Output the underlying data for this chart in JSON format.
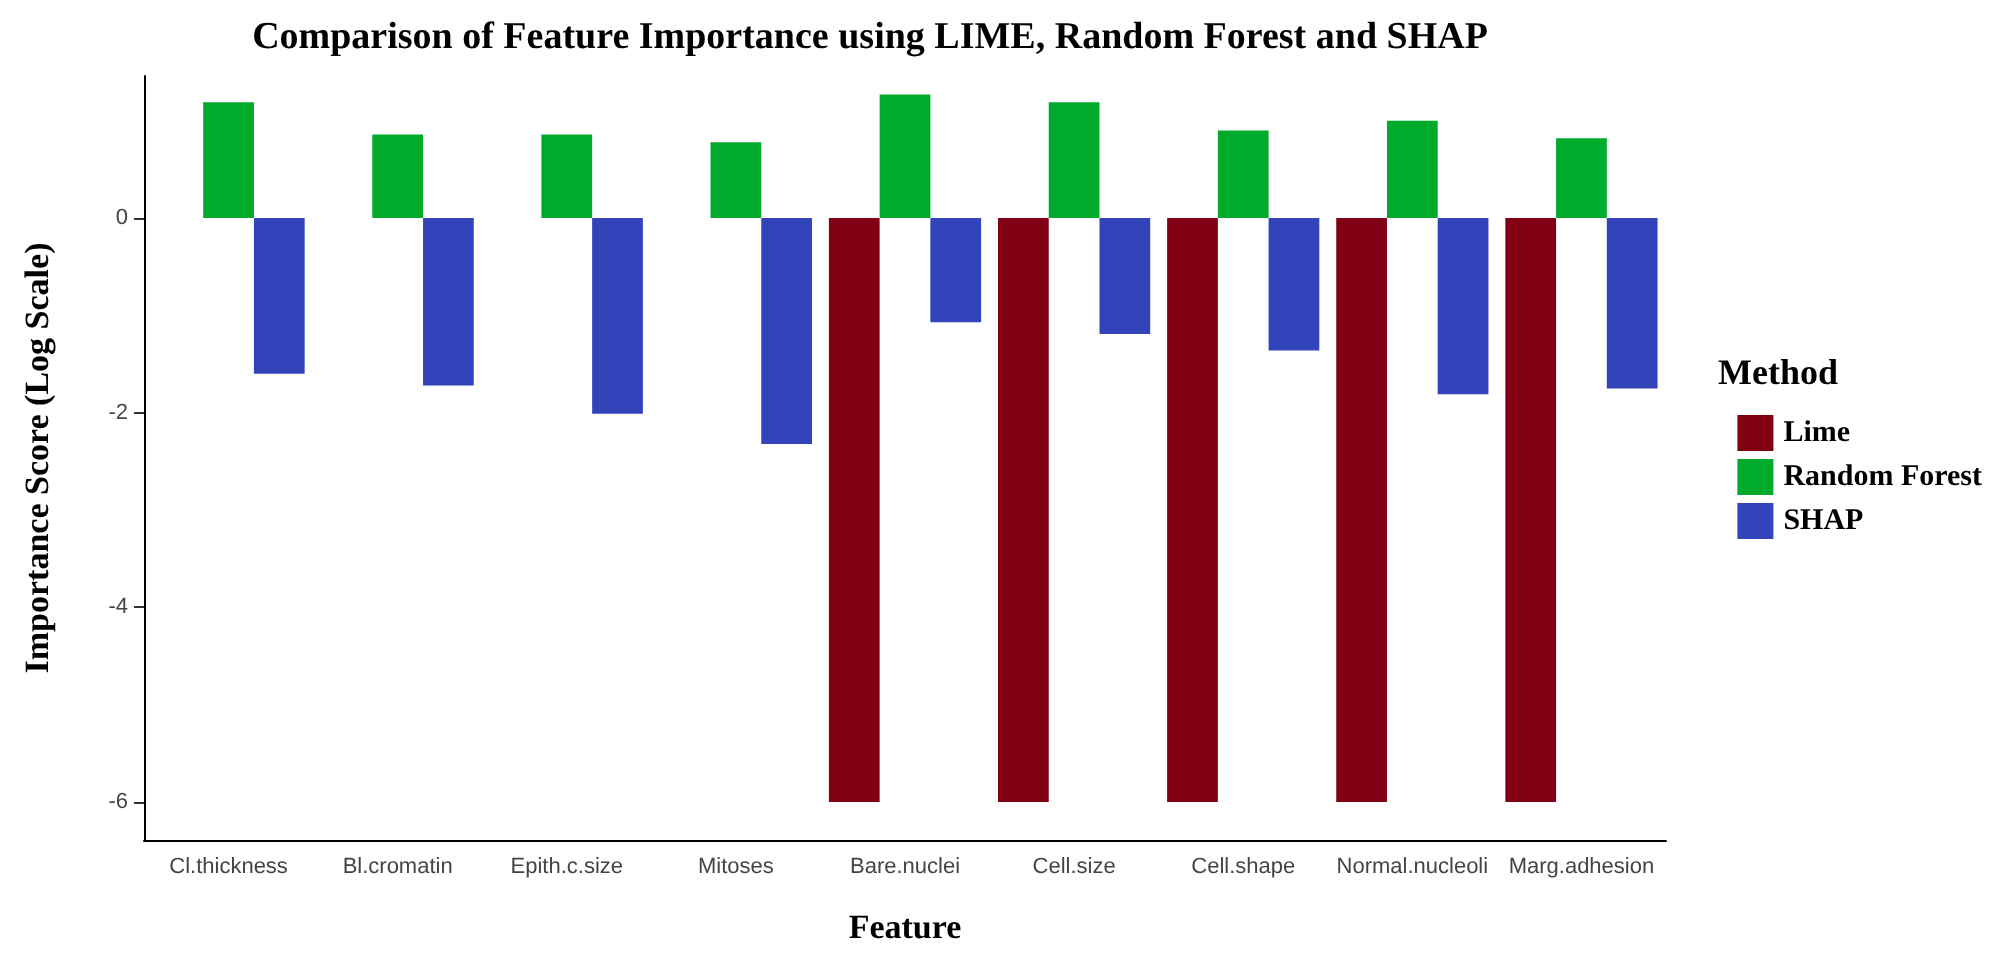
{
  "chart_data": {
    "type": "bar",
    "title": "Comparison of Feature Importance using LIME, Random Forest and SHAP",
    "xlabel": "Feature",
    "ylabel": "Importance Score (Log Scale)",
    "legend_title": "Method",
    "categories": [
      "Cl.thickness",
      "Bl.cromatin",
      "Epith.c.size",
      "Mitoses",
      "Bare.nuclei",
      "Cell.size",
      "Cell.shape",
      "Normal.nucleoli",
      "Marg.adhesion"
    ],
    "series": [
      {
        "name": "Lime",
        "color": "#800014",
        "values": [
          null,
          null,
          null,
          null,
          -6,
          -6,
          -6,
          -6,
          -6
        ]
      },
      {
        "name": "Random Forest",
        "color": "#00aa2a",
        "values": [
          1.19,
          0.86,
          0.86,
          0.78,
          1.27,
          1.19,
          0.9,
          1.0,
          0.82
        ]
      },
      {
        "name": "SHAP",
        "color": "#3344bb",
        "values": [
          -1.6,
          -1.72,
          -2.01,
          -2.32,
          -1.07,
          -1.19,
          -1.36,
          -1.81,
          -1.75
        ]
      }
    ],
    "ylim": [
      -6.39,
      1.46
    ],
    "yticks": [
      -6,
      -4,
      -2,
      0
    ],
    "grid": false,
    "legend": "right"
  }
}
